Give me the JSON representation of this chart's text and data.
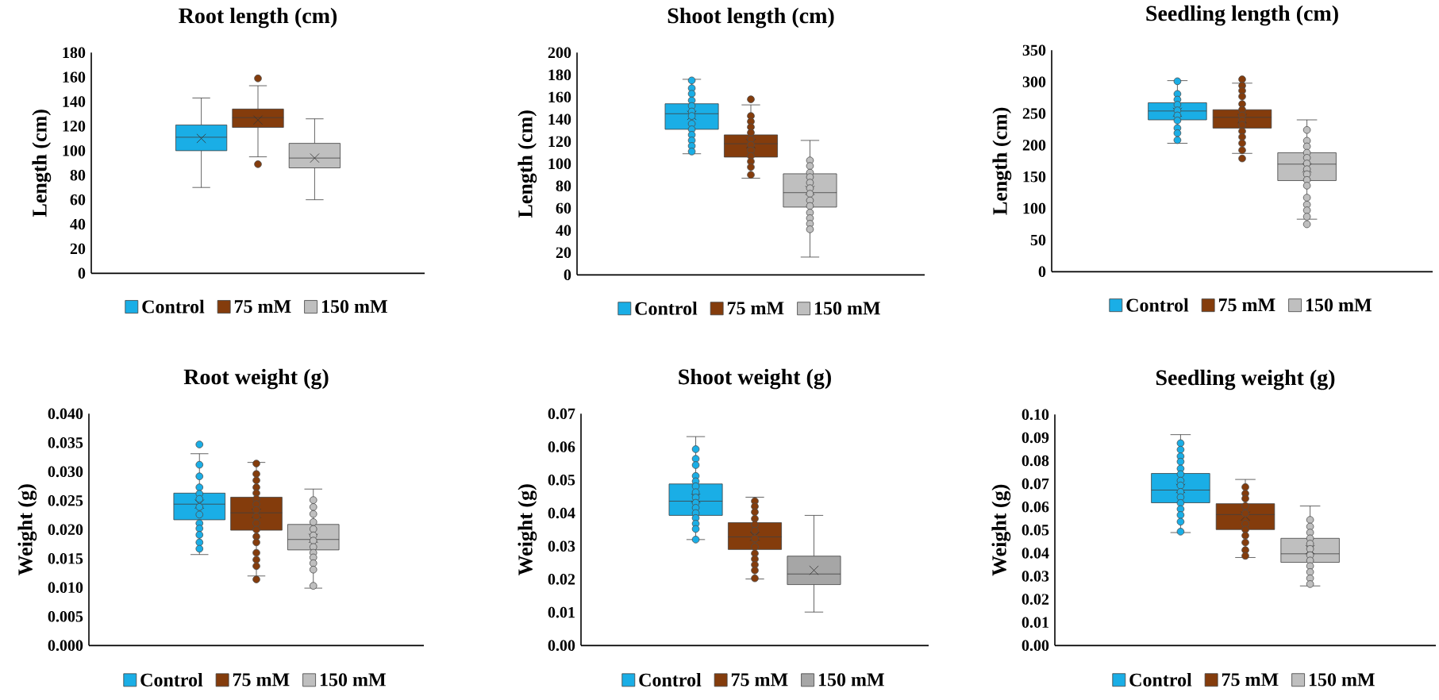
{
  "chart_data": [
    {
      "type": "box",
      "title": "Root length (cm)",
      "ylabel": "Length (cm)",
      "categories": [
        null
      ],
      "ylim": [
        0,
        180
      ],
      "yticks": [
        0,
        20,
        40,
        60,
        80,
        100,
        120,
        140,
        160,
        180
      ],
      "legend": "bottom",
      "series": [
        {
          "name": "Control",
          "color": "#1aaee6",
          "boxes": [
            {
              "low": 70,
              "q1": 100,
              "median": 111,
              "q3": 121,
              "high": 143,
              "mean": 110
            }
          ]
        },
        {
          "name": "75 mM",
          "color": "#843c0c",
          "boxes": [
            {
              "low": 95,
              "q1": 119,
              "median": 127,
              "q3": 134,
              "high": 153,
              "mean": 125,
              "outliers": [
                159,
                89
              ]
            }
          ]
        },
        {
          "name": "150 mM",
          "color": "#bfbfbf",
          "boxes": [
            {
              "low": 60,
              "q1": 86,
              "median": 94,
              "q3": 106,
              "high": 126,
              "mean": 94
            }
          ]
        }
      ]
    },
    {
      "type": "box",
      "title": "Shoot length (cm)",
      "ylabel": "Length (cm)",
      "categories": [
        null
      ],
      "ylim": [
        0,
        200
      ],
      "yticks": [
        0,
        20,
        40,
        60,
        80,
        100,
        120,
        140,
        160,
        180,
        200
      ],
      "legend": "bottom",
      "series": [
        {
          "name": "Control",
          "color": "#1aaee6",
          "boxes": [
            {
              "low": 109,
              "q1": 131,
              "median": 145,
              "q3": 154,
              "high": 176,
              "mean": 143.5,
              "outliers": [
                175,
                168,
                163,
                157,
                152,
                147,
                143,
                136,
                131,
                126,
                121,
                116,
                111
              ]
            }
          ]
        },
        {
          "name": "75 mM",
          "color": "#843c0c",
          "boxes": [
            {
              "low": 87,
              "q1": 106,
              "median": 118,
              "q3": 126,
              "high": 153,
              "mean": 118,
              "outliers": [
                158,
                143,
                138,
                133,
                128,
                122,
                117,
                112,
                107,
                102,
                97,
                90
              ]
            }
          ]
        },
        {
          "name": "150 mM",
          "color": "#bfbfbf",
          "boxes": [
            {
              "low": 16,
              "q1": 61,
              "median": 74,
              "q3": 91,
              "high": 121,
              "mean": 76,
              "outliers": [
                103,
                98,
                92,
                88,
                83,
                78,
                73,
                67,
                62,
                56,
                51,
                46,
                41
              ]
            }
          ]
        }
      ]
    },
    {
      "type": "box",
      "title": "Seedling length (cm)",
      "ylabel": "Length (cm)",
      "categories": [
        null
      ],
      "ylim": [
        0,
        350
      ],
      "yticks": [
        0,
        50,
        100,
        150,
        200,
        250,
        300,
        350
      ],
      "legend": "bottom",
      "series": [
        {
          "name": "Control",
          "color": "#1aaee6",
          "boxes": [
            {
              "low": 203,
              "q1": 240,
              "median": 254,
              "q3": 267,
              "high": 302,
              "mean": 252,
              "outliers": [
                301,
                281,
                272,
                264,
                255,
                247,
                239,
                227,
                219,
                208
              ]
            }
          ]
        },
        {
          "name": "75 mM",
          "color": "#843c0c",
          "boxes": [
            {
              "low": 187,
              "q1": 227,
              "median": 244,
              "q3": 256,
              "high": 298,
              "mean": 242,
              "outliers": [
                304,
                294,
                286,
                277,
                265,
                256,
                247,
                239,
                232,
                222,
                213,
                203,
                192,
                179
              ]
            }
          ]
        },
        {
          "name": "150 mM",
          "color": "#bfbfbf",
          "boxes": [
            {
              "low": 83,
              "q1": 144,
              "median": 170,
              "q3": 188,
              "high": 240,
              "mean": 164,
              "outliers": [
                224,
                207,
                198,
                188,
                180,
                171,
                162,
                154,
                145,
                136,
                117,
                106,
                97,
                87,
                75
              ]
            }
          ]
        }
      ]
    },
    {
      "type": "box",
      "title": "Root weight (g)",
      "ylabel": "Weight (g)",
      "categories": [
        null
      ],
      "ylim": [
        0,
        0.04
      ],
      "yticks": [
        {
          "value": 0,
          "label": "0.000"
        },
        {
          "value": 0.005,
          "label": "0.005"
        },
        {
          "value": 0.01,
          "label": "0.010"
        },
        {
          "value": 0.015,
          "label": "0.015"
        },
        {
          "value": 0.02,
          "label": "0.020"
        },
        {
          "value": 0.025,
          "label": "0.025"
        },
        {
          "value": 0.03,
          "label": "0.030"
        },
        {
          "value": 0.035,
          "label": "0.035"
        },
        {
          "value": 0.04,
          "label": "0.040"
        }
      ],
      "legend": "bottom",
      "series": [
        {
          "name": "Control",
          "color": "#1aaee6",
          "boxes": [
            {
              "low": 0.0157,
              "q1": 0.0217,
              "median": 0.0244,
              "q3": 0.0263,
              "high": 0.0331,
              "mean": 0.0244,
              "outliers": [
                0.0347,
                0.0312,
                0.0292,
                0.0273,
                0.0262,
                0.0253,
                0.0239,
                0.0226,
                0.0211,
                0.0202,
                0.0191,
                0.0178,
                0.0167
              ]
            }
          ]
        },
        {
          "name": "75 mM",
          "color": "#843c0c",
          "boxes": [
            {
              "low": 0.012,
              "q1": 0.0199,
              "median": 0.0229,
              "q3": 0.0256,
              "high": 0.0316,
              "mean": 0.0228,
              "outliers": [
                0.0314,
                0.0296,
                0.0285,
                0.0273,
                0.0263,
                0.0253,
                0.0244,
                0.0234,
                0.0223,
                0.0211,
                0.02,
                0.0188,
                0.0178,
                0.016,
                0.0148,
                0.0137,
                0.0114
              ]
            }
          ]
        },
        {
          "name": "150 mM",
          "color": "#bfbfbf",
          "boxes": [
            {
              "low": 0.0099,
              "q1": 0.0165,
              "median": 0.0183,
              "q3": 0.0209,
              "high": 0.027,
              "mean": 0.0185,
              "outliers": [
                0.0251,
                0.0239,
                0.0227,
                0.0213,
                0.0201,
                0.019,
                0.0181,
                0.017,
                0.016,
                0.0152,
                0.0142,
                0.0131,
                0.0103
              ]
            }
          ]
        }
      ]
    },
    {
      "type": "box",
      "title": "Shoot weight (g)",
      "ylabel": "Weight (g)",
      "categories": [
        null
      ],
      "ylim": [
        0,
        0.07
      ],
      "yticks": [
        {
          "value": 0,
          "label": "0.00"
        },
        0.01,
        0.02,
        0.03,
        0.04,
        0.05,
        0.06,
        0.07
      ],
      "legend": "bottom",
      "series": [
        {
          "name": "Control",
          "color": "#1aaee6",
          "boxes": [
            {
              "low": 0.032,
              "q1": 0.0393,
              "median": 0.0436,
              "q3": 0.0488,
              "high": 0.0631,
              "mean": 0.0445,
              "outliers": [
                0.0593,
                0.0564,
                0.0545,
                0.0512,
                0.0496,
                0.0481,
                0.0463,
                0.0447,
                0.0431,
                0.0416,
                0.04,
                0.0385,
                0.0368,
                0.0352,
                0.032
              ]
            }
          ]
        },
        {
          "name": "75 mM",
          "color": "#843c0c",
          "boxes": [
            {
              "low": 0.0201,
              "q1": 0.029,
              "median": 0.0328,
              "q3": 0.0371,
              "high": 0.0448,
              "mean": 0.033,
              "outliers": [
                0.0436,
                0.042,
                0.0403,
                0.0383,
                0.0365,
                0.0347,
                0.0323,
                0.0298,
                0.0278,
                0.0261,
                0.0244,
                0.0227,
                0.0203
              ]
            }
          ]
        },
        {
          "name": "150 mM",
          "color": "#a6a6a6",
          "boxes": [
            {
              "low": 0.0101,
              "q1": 0.0184,
              "median": 0.0216,
              "q3": 0.027,
              "high": 0.0393,
              "mean": 0.0227
            }
          ]
        }
      ]
    },
    {
      "type": "box",
      "title": "Seedling weight (g)",
      "ylabel": "Weight (g)",
      "categories": [
        null
      ],
      "ylim": [
        0,
        0.1
      ],
      "yticks": [
        {
          "value": 0,
          "label": "0.00"
        },
        0.01,
        0.02,
        0.03,
        0.04,
        0.05,
        0.06,
        0.07,
        0.08,
        0.09,
        {
          "value": 0.1,
          "label": "0.10"
        }
      ],
      "legend": "bottom",
      "series": [
        {
          "name": "Control",
          "color": "#1aaee6",
          "boxes": [
            {
              "low": 0.0489,
              "q1": 0.0618,
              "median": 0.0673,
              "q3": 0.0745,
              "high": 0.0913,
              "mean": 0.068,
              "outliers": [
                0.0876,
                0.0848,
                0.0819,
                0.0796,
                0.0766,
                0.0742,
                0.0714,
                0.0693,
                0.0665,
                0.0642,
                0.0617,
                0.0591,
                0.0565,
                0.0536,
                0.0493
              ]
            }
          ]
        },
        {
          "name": "75 mM",
          "color": "#843c0c",
          "boxes": [
            {
              "low": 0.0381,
              "q1": 0.0502,
              "median": 0.0567,
              "q3": 0.0614,
              "high": 0.0719,
              "mean": 0.056,
              "outliers": [
                0.0686,
                0.0658,
                0.0636,
                0.0604,
                0.0572,
                0.0527,
                0.0502,
                0.0476,
                0.0446,
                0.0413,
                0.0388
              ]
            }
          ]
        },
        {
          "name": "150 mM",
          "color": "#bfbfbf",
          "boxes": [
            {
              "low": 0.0258,
              "q1": 0.036,
              "median": 0.0397,
              "q3": 0.0464,
              "high": 0.0604,
              "mean": 0.0415,
              "outliers": [
                0.0544,
                0.0515,
                0.0489,
                0.0464,
                0.0441,
                0.0418,
                0.0391,
                0.0368,
                0.0344,
                0.0318,
                0.0291,
                0.0266
              ]
            }
          ]
        }
      ]
    }
  ]
}
